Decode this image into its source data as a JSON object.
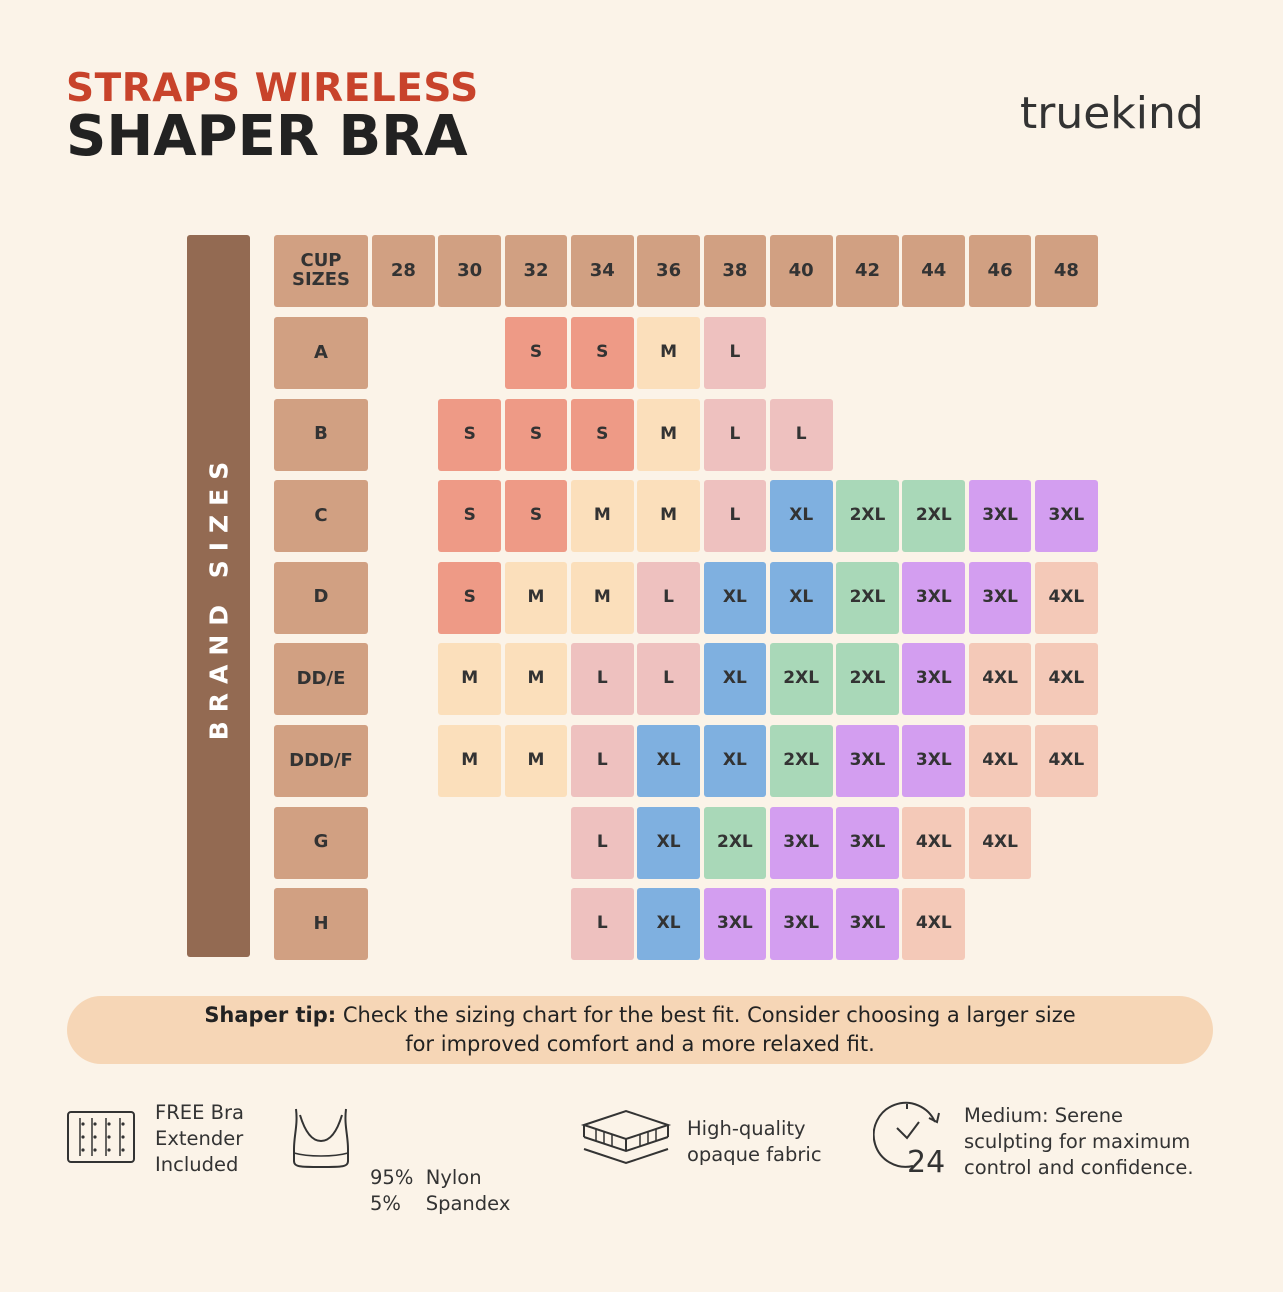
{
  "header": {
    "title_line1": "STRAPS WIRELESS",
    "title_line2": "SHAPER BRA",
    "brand": "truekind"
  },
  "chart": {
    "side_label": "BRAND SIZES",
    "corner_label": "CUP SIZES",
    "band_sizes": [
      "28",
      "30",
      "32",
      "34",
      "36",
      "38",
      "40",
      "42",
      "44",
      "46",
      "48"
    ],
    "rows": [
      {
        "cup": "A",
        "cells": [
          "",
          "",
          "S",
          "S",
          "M",
          "L",
          "",
          "",
          "",
          "",
          ""
        ]
      },
      {
        "cup": "B",
        "cells": [
          "",
          "S",
          "S",
          "S",
          "M",
          "L",
          "L",
          "",
          "",
          "",
          ""
        ]
      },
      {
        "cup": "C",
        "cells": [
          "",
          "S",
          "S",
          "M",
          "M",
          "L",
          "XL",
          "2XL",
          "2XL",
          "3XL",
          "3XL"
        ]
      },
      {
        "cup": "D",
        "cells": [
          "",
          "S",
          "M",
          "M",
          "L",
          "XL",
          "XL",
          "2XL",
          "3XL",
          "3XL",
          "4XL"
        ]
      },
      {
        "cup": "DD/E",
        "cells": [
          "",
          "M",
          "M",
          "L",
          "L",
          "XL",
          "2XL",
          "2XL",
          "3XL",
          "4XL",
          "4XL"
        ]
      },
      {
        "cup": "DDD/F",
        "cells": [
          "",
          "M",
          "M",
          "L",
          "XL",
          "XL",
          "2XL",
          "3XL",
          "3XL",
          "4XL",
          "4XL"
        ]
      },
      {
        "cup": "G",
        "cells": [
          "",
          "",
          "",
          "L",
          "XL",
          "2XL",
          "3XL",
          "3XL",
          "4XL",
          "4XL",
          ""
        ]
      },
      {
        "cup": "H",
        "cells": [
          "",
          "",
          "",
          "L",
          "XL",
          "3XL",
          "3XL",
          "3XL",
          "4XL",
          "",
          ""
        ]
      }
    ],
    "size_colors": {
      "S": "#ee9a86",
      "M": "#fbdfbb",
      "L": "#eec1bf",
      "XL": "#7fb0e0",
      "2XL": "#a9d8b8",
      "3XL": "#d39ef0",
      "4XL": "#f4c9b8"
    }
  },
  "tip": {
    "label": "Shaper tip:",
    "line1": " Check the sizing chart for the best fit. Consider choosing a larger size",
    "line2": "for improved comfort and a more relaxed fit."
  },
  "features": [
    {
      "icon": "bra-extender-icon",
      "lines": [
        "FREE Bra",
        "Extender",
        "Included"
      ]
    },
    {
      "icon": "bra-outline-icon",
      "lines": [
        "95%  Nylon",
        "5%    Spandex"
      ]
    },
    {
      "icon": "fabric-layers-icon",
      "lines": [
        "High-quality",
        "opaque fabric"
      ]
    },
    {
      "icon": "clock-24-icon",
      "lines": [
        "Medium: Serene",
        "sculpting for maximum",
        "control and confidence."
      ]
    }
  ]
}
